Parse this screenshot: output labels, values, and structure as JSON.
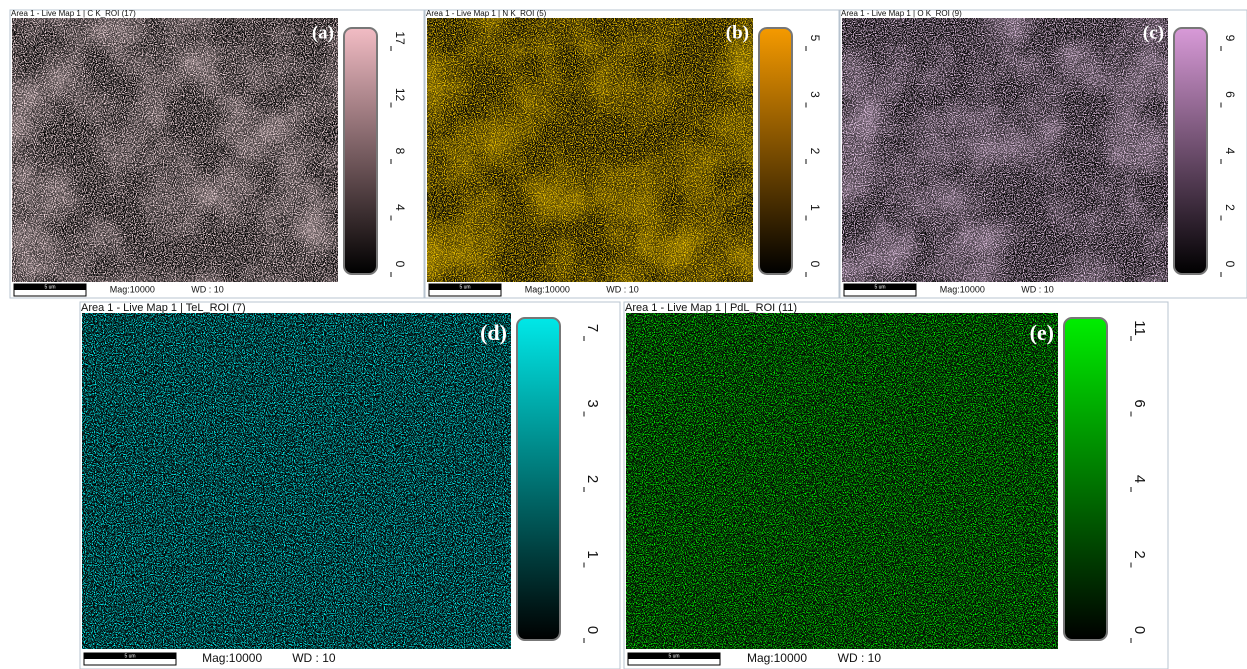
{
  "panels": [
    {
      "title": "Area 1 - Live Map 1 | C K_ROI (17)",
      "label": "(a)",
      "scale_bar": "5 um",
      "mag": "Mag:10000",
      "wd": "WD : 10",
      "colorbar_ticks": [
        17,
        12,
        8,
        4,
        0
      ],
      "color": "#f2bcc4"
    },
    {
      "title": "Area 1 - Live Map 1 | N K_ROI (5)",
      "label": "(b)",
      "scale_bar": "5 um",
      "mag": "Mag:10000",
      "wd": "WD : 10",
      "colorbar_ticks": [
        5,
        3,
        2,
        1,
        0
      ],
      "color": "#f59a00"
    },
    {
      "title": "Area 1 - Live Map 1 | O K_ROI (9)",
      "label": "(c)",
      "scale_bar": "5 um",
      "mag": "Mag:10000",
      "wd": "WD : 10",
      "colorbar_ticks": [
        9,
        6,
        4,
        2,
        0
      ],
      "color": "#d89ad8"
    },
    {
      "title": "Area 1 - Live Map 1 | TeL_ROI (7)",
      "label": "(d)",
      "scale_bar": "5 um",
      "mag": "Mag:10000",
      "wd": "WD : 10",
      "colorbar_ticks": [
        7,
        3,
        2,
        1,
        0
      ],
      "color": "#00e8e8"
    },
    {
      "title": "Area 1 - Live Map 1 | PdL_ROI (11)",
      "label": "(e)",
      "scale_bar": "5 um",
      "mag": "Mag:10000",
      "wd": "WD : 10",
      "colorbar_ticks": [
        11,
        6,
        4,
        2,
        0
      ],
      "color": "#00ee00"
    }
  ]
}
